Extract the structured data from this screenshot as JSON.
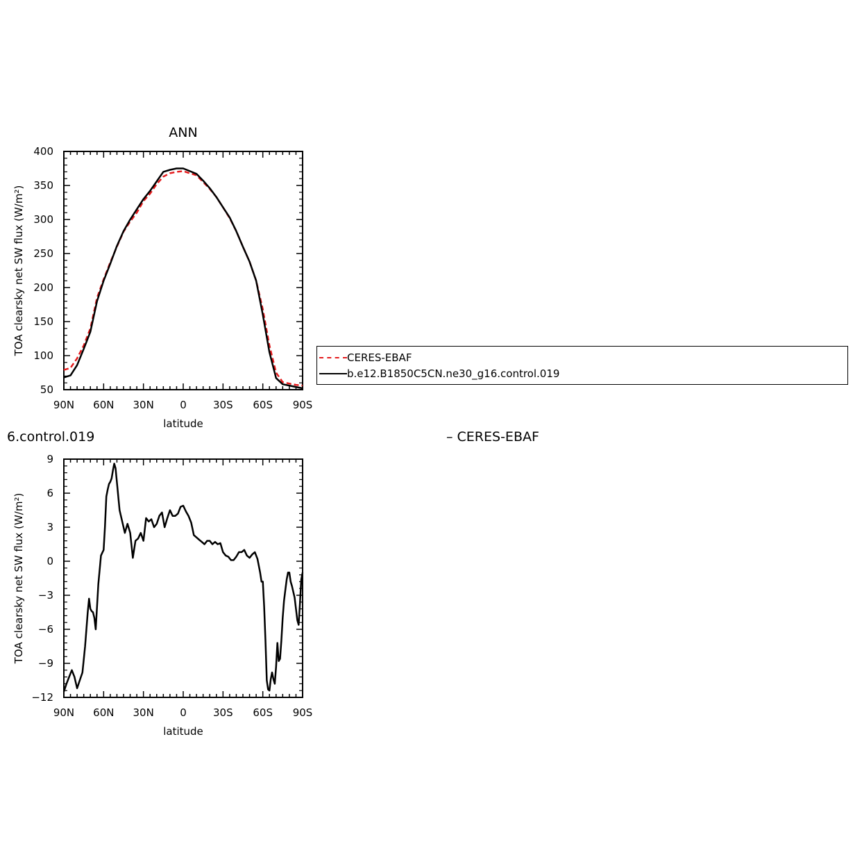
{
  "chart_data": [
    {
      "type": "line",
      "title": "ANN",
      "xlabel": "latitude",
      "ylabel": "TOA clearsky net SW flux (W/m²)",
      "xlim": [
        90,
        -90
      ],
      "ylim": [
        50,
        400
      ],
      "x_tick_values": [
        90,
        60,
        30,
        0,
        -30,
        -60,
        -90
      ],
      "x_tick_labels": [
        "90N",
        "60N",
        "30N",
        "0",
        "30S",
        "60S",
        "90S"
      ],
      "y_tick_values": [
        50,
        100,
        150,
        200,
        250,
        300,
        350,
        400
      ],
      "y_tick_labels": [
        "50",
        "100",
        "150",
        "200",
        "250",
        "300",
        "350",
        "400"
      ],
      "grid": false,
      "legend_position": "right, outside",
      "series": [
        {
          "name": "CERES-EBAF",
          "color": "#e41a1c",
          "style": "dashed",
          "x": [
            90,
            85,
            80,
            75,
            70,
            65,
            60,
            55,
            50,
            45,
            40,
            35,
            30,
            25,
            20,
            15,
            10,
            5,
            0,
            -5,
            -10,
            -15,
            -20,
            -25,
            -30,
            -35,
            -40,
            -45,
            -50,
            -55,
            -60,
            -65,
            -70,
            -75,
            -80,
            -85,
            -90
          ],
          "y": [
            79,
            82,
            96,
            115,
            140,
            185,
            212,
            237,
            260,
            282,
            297,
            310,
            327,
            338,
            352,
            363,
            368,
            370,
            371,
            368,
            365,
            355,
            345,
            333,
            318,
            302,
            283,
            260,
            238,
            210,
            168,
            115,
            75,
            61,
            59,
            57,
            56
          ]
        },
        {
          "name": "b.e12.B1850C5CN.ne30_g16.control.019",
          "color": "#000000",
          "style": "solid",
          "x": [
            90,
            85,
            80,
            75,
            70,
            65,
            60,
            55,
            50,
            45,
            40,
            35,
            30,
            25,
            20,
            15,
            10,
            5,
            0,
            -5,
            -10,
            -15,
            -20,
            -25,
            -30,
            -35,
            -40,
            -45,
            -50,
            -55,
            -60,
            -65,
            -70,
            -75,
            -80,
            -85,
            -90
          ],
          "y": [
            68,
            71,
            86,
            110,
            135,
            180,
            210,
            235,
            261,
            283,
            300,
            315,
            330,
            342,
            356,
            370,
            373,
            375,
            375,
            371,
            367,
            357,
            346,
            333,
            318,
            303,
            283,
            260,
            238,
            210,
            160,
            105,
            67,
            58,
            56,
            54,
            52
          ]
        }
      ]
    },
    {
      "type": "line",
      "title": "6.control.019",
      "subtitle": "– CERES-EBAF",
      "xlabel": "latitude",
      "ylabel": "TOA clearsky net SW flux (W/m²)",
      "xlim": [
        90,
        -90
      ],
      "ylim": [
        -12,
        9
      ],
      "x_tick_values": [
        90,
        60,
        30,
        0,
        -30,
        -60,
        -90
      ],
      "x_tick_labels": [
        "90N",
        "60N",
        "30N",
        "0",
        "30S",
        "60S",
        "90S"
      ],
      "y_tick_values": [
        -12,
        -9,
        -6,
        -3,
        0,
        3,
        6,
        9
      ],
      "y_tick_labels": [
        "−12",
        "−9",
        "−6",
        "−3",
        "0",
        "3",
        "6",
        "9"
      ],
      "grid": false,
      "series": [
        {
          "color": "#000000",
          "style": "solid",
          "x": [
            90,
            88,
            86,
            84,
            82,
            80,
            78,
            76,
            74,
            73,
            72,
            71,
            70,
            69,
            68,
            67,
            66,
            64,
            62,
            60,
            59,
            58,
            57,
            56,
            55,
            54,
            53,
            52,
            51,
            50,
            48,
            46,
            44,
            42,
            40,
            38,
            36,
            34,
            32,
            30,
            28,
            26,
            24,
            22,
            20,
            18,
            16,
            14,
            12,
            10,
            8,
            6,
            4,
            2,
            0,
            -2,
            -4,
            -6,
            -8,
            -10,
            -12,
            -14,
            -16,
            -18,
            -20,
            -22,
            -24,
            -26,
            -28,
            -30,
            -32,
            -34,
            -36,
            -38,
            -40,
            -42,
            -44,
            -46,
            -48,
            -50,
            -52,
            -54,
            -56,
            -58,
            -59,
            -60,
            -61,
            -62,
            -63,
            -64,
            -65,
            -66,
            -67,
            -68,
            -69,
            -70,
            -71,
            -72,
            -73,
            -74,
            -75,
            -76,
            -77,
            -78,
            -79,
            -80,
            -81,
            -82,
            -84,
            -86,
            -87,
            -88,
            -89,
            -90
          ],
          "y": [
            -11.5,
            -10.8,
            -10.2,
            -9.6,
            -10.2,
            -11.2,
            -10.5,
            -9.8,
            -7.5,
            -6.0,
            -4.5,
            -3.3,
            -4.2,
            -4.4,
            -4.5,
            -5.0,
            -6.0,
            -2.0,
            0.5,
            1.0,
            3.0,
            5.7,
            6.3,
            6.8,
            7.0,
            7.3,
            8.0,
            8.6,
            8.2,
            7.0,
            4.5,
            3.5,
            2.5,
            3.3,
            2.5,
            0.3,
            1.8,
            2.0,
            2.5,
            1.8,
            3.8,
            3.5,
            3.7,
            3.0,
            3.3,
            4.0,
            4.3,
            3.0,
            3.8,
            4.5,
            4.0,
            4.0,
            4.2,
            4.8,
            4.9,
            4.4,
            4.0,
            3.4,
            2.3,
            2.1,
            1.9,
            1.7,
            1.5,
            1.8,
            1.8,
            1.5,
            1.7,
            1.5,
            1.6,
            0.8,
            0.5,
            0.4,
            0.1,
            0.1,
            0.4,
            0.8,
            0.8,
            1.0,
            0.5,
            0.3,
            0.6,
            0.8,
            0.2,
            -1.0,
            -1.8,
            -1.8,
            -4.0,
            -7.0,
            -10.5,
            -11.3,
            -11.4,
            -10.4,
            -9.8,
            -10.4,
            -10.8,
            -9.3,
            -7.2,
            -8.8,
            -8.6,
            -7.0,
            -5.0,
            -3.5,
            -2.5,
            -1.6,
            -1.0,
            -1.0,
            -1.8,
            -2.2,
            -3.2,
            -5.2,
            -5.6,
            -3.7,
            -1.6,
            -1.0
          ]
        }
      ]
    }
  ],
  "legend": {
    "items": [
      {
        "label": "CERES-EBAF",
        "color": "#e41a1c",
        "style": "dashed"
      },
      {
        "label": "b.e12.B1850C5CN.ne30_g16.control.019",
        "color": "#000000",
        "style": "solid"
      }
    ]
  }
}
